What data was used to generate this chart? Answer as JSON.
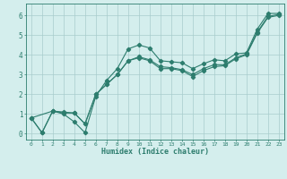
{
  "title": "",
  "xlabel": "Humidex (Indice chaleur)",
  "ylabel": "",
  "xlim": [
    -0.5,
    23.5
  ],
  "ylim": [
    -0.3,
    6.6
  ],
  "xticks": [
    0,
    1,
    2,
    3,
    4,
    5,
    6,
    7,
    8,
    9,
    10,
    11,
    12,
    13,
    14,
    15,
    16,
    17,
    18,
    19,
    20,
    21,
    22,
    23
  ],
  "yticks": [
    0,
    1,
    2,
    3,
    4,
    5,
    6
  ],
  "bg_color": "#d4eeed",
  "line_color": "#2d7d6e",
  "grid_color": "#a8cccc",
  "series": {
    "line1_x": [
      0,
      1,
      2,
      3,
      4,
      5,
      6,
      7,
      8,
      9,
      10,
      11,
      12,
      13,
      14,
      15,
      16,
      17,
      18,
      19,
      20,
      21,
      22,
      23
    ],
    "line1_y": [
      0.8,
      0.05,
      1.15,
      1.0,
      0.6,
      0.05,
      1.9,
      2.7,
      3.3,
      4.3,
      4.5,
      4.35,
      3.7,
      3.65,
      3.6,
      3.3,
      3.55,
      3.75,
      3.7,
      4.05,
      4.1,
      5.3,
      6.1,
      6.1
    ],
    "line2_x": [
      0,
      1,
      2,
      3,
      4,
      5,
      6,
      7,
      8,
      9,
      10,
      11,
      12,
      13,
      14,
      15,
      16,
      17,
      18,
      19,
      20,
      21,
      22,
      23
    ],
    "line2_y": [
      0.8,
      0.05,
      1.15,
      1.05,
      1.05,
      0.5,
      2.0,
      2.5,
      3.0,
      3.7,
      3.9,
      3.75,
      3.4,
      3.35,
      3.25,
      3.0,
      3.3,
      3.5,
      3.5,
      3.85,
      4.05,
      5.15,
      5.95,
      6.05
    ],
    "line3_x": [
      0,
      2,
      3,
      4,
      5,
      6,
      7,
      8,
      9,
      10,
      11,
      12,
      13,
      14,
      15,
      16,
      17,
      18,
      19,
      20,
      21,
      22,
      23
    ],
    "line3_y": [
      0.8,
      1.15,
      1.1,
      1.05,
      0.5,
      2.0,
      2.5,
      3.0,
      3.7,
      3.85,
      3.7,
      3.3,
      3.3,
      3.2,
      2.9,
      3.2,
      3.4,
      3.45,
      3.8,
      4.0,
      5.1,
      5.9,
      6.0
    ]
  }
}
